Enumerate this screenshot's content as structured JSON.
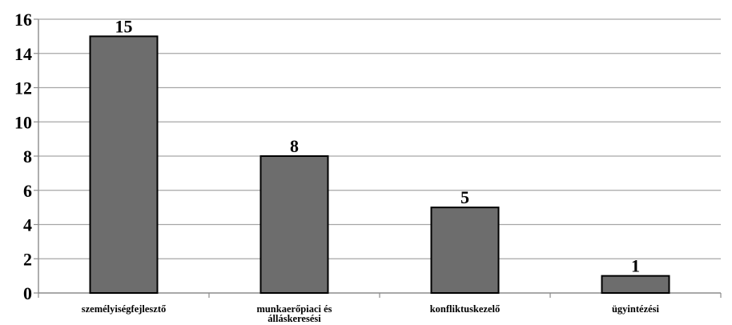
{
  "chart_data": {
    "type": "bar",
    "categories": [
      [
        "személyiségfejlesztő"
      ],
      [
        "munkaerőpiaci és",
        "álláskeresési"
      ],
      [
        "konfliktuskezelő"
      ],
      [
        "ügyintézési"
      ]
    ],
    "values": [
      15,
      8,
      5,
      1
    ],
    "data_labels": [
      "15",
      "8",
      "5",
      "1"
    ],
    "ylim": [
      0,
      16
    ],
    "yticks": [
      "0",
      "2",
      "4",
      "6",
      "8",
      "10",
      "12",
      "14",
      "16"
    ],
    "title": "",
    "xlabel": "",
    "ylabel": "",
    "grid": true,
    "legend": "none",
    "colors": {
      "bar_fill": "#6d6d6d",
      "bar_stroke": "#000000",
      "grid": "#a6a6a6",
      "axis": "#8c8c8c"
    }
  }
}
